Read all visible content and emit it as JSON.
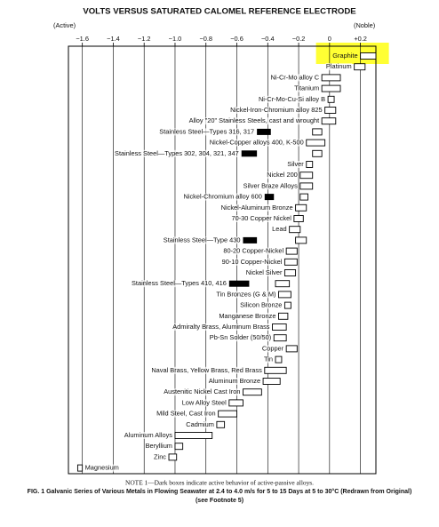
{
  "chart_data": {
    "type": "range-bar",
    "title": "VOLTS VERSUS SATURATED CALOMEL REFERENCE ELECTRODE",
    "left_label": "(Active)",
    "right_label": "(Noble)",
    "xlim": [
      -1.69,
      0.3
    ],
    "xticks": [
      {
        "value": -1.6,
        "label": "−1.6"
      },
      {
        "value": -1.4,
        "label": "−1.4"
      },
      {
        "value": -1.2,
        "label": "−1.2"
      },
      {
        "value": -1.0,
        "label": "−1.0"
      },
      {
        "value": -0.8,
        "label": "−0.8"
      },
      {
        "value": -0.6,
        "label": "−0.6"
      },
      {
        "value": -0.4,
        "label": "−0.4"
      },
      {
        "value": -0.2,
        "label": "−0.2"
      },
      0,
      {
        "value": 0.2,
        "label": "+0.2"
      }
    ],
    "grid": true,
    "color": "#ffffff",
    "active_color": "#000000",
    "highlight_color": "#ffff33",
    "rows": [
      {
        "name": "Graphite",
        "range": [
          0.2,
          0.3
        ],
        "highlight": true
      },
      {
        "name": "Platinum",
        "range": [
          0.16,
          0.23
        ]
      },
      {
        "name": "Ni-Cr-Mo alloy C",
        "range": [
          -0.05,
          0.07
        ]
      },
      {
        "name": "Titanium",
        "range": [
          -0.05,
          0.07
        ]
      },
      {
        "name": "Ni-Cr-Mo-Cu-Si alloy B",
        "range": [
          -0.01,
          0.03
        ]
      },
      {
        "name": "Nickel-Iron-Chromium alloy 825",
        "range": [
          -0.03,
          0.04
        ]
      },
      {
        "name": "Alloy \"20\" Stainless Steels, cast and wrought",
        "range": [
          -0.05,
          0.04
        ]
      },
      {
        "name": "Stainless Steel—Types 316, 317",
        "range": [
          -0.11,
          -0.05
        ],
        "active": [
          -0.47,
          -0.38
        ]
      },
      {
        "name": "Nickel-Copper alloys 400, K-500",
        "range": [
          -0.15,
          -0.03
        ]
      },
      {
        "name": "Stainless Steel—Types 302, 304, 321, 347",
        "range": [
          -0.11,
          -0.05
        ],
        "active": [
          -0.57,
          -0.47
        ]
      },
      {
        "name": "Silver",
        "range": [
          -0.15,
          -0.11
        ]
      },
      {
        "name": "Nickel 200",
        "range": [
          -0.19,
          -0.11
        ]
      },
      {
        "name": "Silver Braze Alloys",
        "range": [
          -0.19,
          -0.11
        ]
      },
      {
        "name": "Nickel-Chromium alloy 600",
        "range": [
          -0.19,
          -0.14
        ],
        "active": [
          -0.42,
          -0.36
        ]
      },
      {
        "name": "Nickel-Aluminum Bronze",
        "range": [
          -0.22,
          -0.15
        ]
      },
      {
        "name": "70-30 Copper Nickel",
        "range": [
          -0.23,
          -0.17
        ]
      },
      {
        "name": "Lead",
        "range": [
          -0.26,
          -0.19
        ]
      },
      {
        "name": "Stainless Steel—Type 430",
        "range": [
          -0.22,
          -0.15
        ],
        "active": [
          -0.56,
          -0.47
        ]
      },
      {
        "name": "80-20 Copper-Nickel",
        "range": [
          -0.28,
          -0.21
        ]
      },
      {
        "name": "90-10 Copper-Nickel",
        "range": [
          -0.29,
          -0.21
        ]
      },
      {
        "name": "Nickel Silver",
        "range": [
          -0.29,
          -0.22
        ]
      },
      {
        "name": "Stainless Steel—Types 410, 416",
        "range": [
          -0.35,
          -0.26
        ],
        "active": [
          -0.65,
          -0.52
        ]
      },
      {
        "name": "Tin Bronzes (G & M)",
        "range": [
          -0.33,
          -0.25
        ]
      },
      {
        "name": "Silicon Bronze",
        "range": [
          -0.29,
          -0.25
        ]
      },
      {
        "name": "Manganese Bronze",
        "range": [
          -0.33,
          -0.27
        ]
      },
      {
        "name": "Admiralty Brass, Aluminum Brass",
        "range": [
          -0.37,
          -0.28
        ]
      },
      {
        "name": "Pb-Sn Solder (50/50)",
        "range": [
          -0.36,
          -0.28
        ]
      },
      {
        "name": "Copper",
        "range": [
          -0.28,
          -0.21
        ]
      },
      {
        "name": "Tin",
        "range": [
          -0.35,
          -0.31
        ]
      },
      {
        "name": "Naval Brass, Yellow Brass, Red Brass",
        "range": [
          -0.42,
          -0.28
        ]
      },
      {
        "name": "Aluminum Bronze",
        "range": [
          -0.43,
          -0.32
        ]
      },
      {
        "name": "Austenitic Nickel Cast Iron",
        "range": [
          -0.56,
          -0.44
        ]
      },
      {
        "name": "Low Alloy Steel",
        "range": [
          -0.65,
          -0.56
        ]
      },
      {
        "name": "Mild Steel, Cast Iron",
        "range": [
          -0.72,
          -0.6
        ]
      },
      {
        "name": "Cadmium",
        "range": [
          -0.73,
          -0.68
        ]
      },
      {
        "name": "Aluminum Alloys",
        "range": [
          -1.0,
          -0.76
        ]
      },
      {
        "name": "Beryllium",
        "range": [
          -1.0,
          -0.95
        ]
      },
      {
        "name": "Zinc",
        "range": [
          -1.04,
          -0.99
        ]
      },
      {
        "name": "Magnesium",
        "range": [
          -1.63,
          -1.6
        ]
      }
    ],
    "note": "NOTE 1—Dark boxes indicate active behavior of active-passive alloys.",
    "caption": "FIG. 1 Galvanic Series of Various Metals in Flowing Seawater at 2.4 to 4.0 m/s for 5 to 15 Days at 5 to 30°C (Redrawn from Original)",
    "caption_sub": "(see Footnote 5)"
  }
}
